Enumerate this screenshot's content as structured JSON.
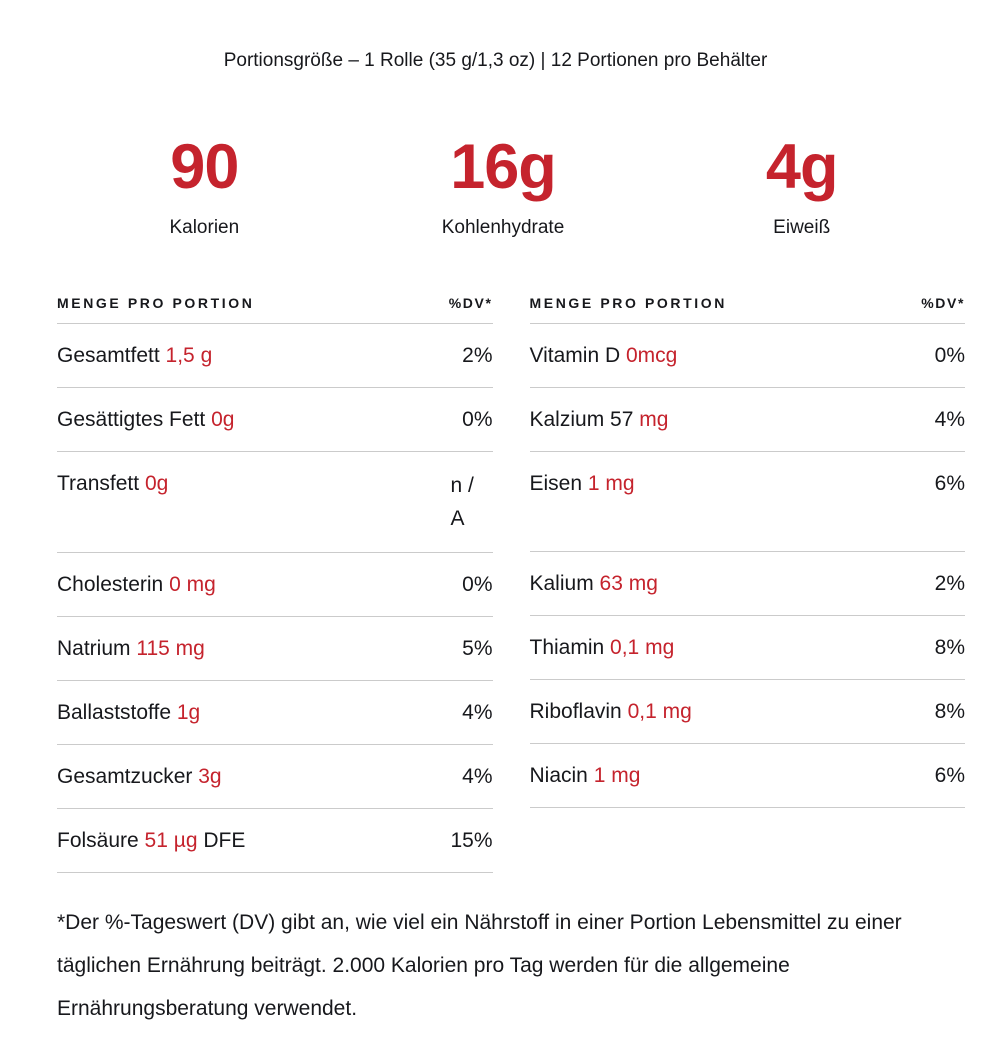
{
  "colors": {
    "accent_red": "#C5232D",
    "text": "#17181C",
    "divider": "#CBCBCB"
  },
  "serving_line": "Portionsgröße – 1 Rolle (35 g/1,3 oz) | 12 Portionen pro Behälter",
  "stats": [
    {
      "value": "90",
      "label": "Kalorien"
    },
    {
      "value": "16g",
      "label": "Kohlenhydrate"
    },
    {
      "value": "4g",
      "label": "Eiweiß"
    }
  ],
  "table": {
    "left": {
      "header": "MENGE PRO PORTION",
      "dv_header": "%DV*",
      "rows": [
        {
          "name": "Gesamtfett",
          "value": "1,5 g",
          "suffix": "",
          "dv": "2%"
        },
        {
          "name": "Gesättigtes Fett",
          "value": "0g",
          "suffix": "",
          "dv": "0%"
        },
        {
          "name": "Transfett",
          "value": "0g",
          "suffix": "",
          "dv": "n / A"
        },
        {
          "name": "Cholesterin",
          "value": "0 mg",
          "suffix": "",
          "dv": "0%"
        },
        {
          "name": "Natrium",
          "value": "115 mg",
          "suffix": "",
          "dv": "5%"
        },
        {
          "name": "Ballaststoffe",
          "value": "1g",
          "suffix": "",
          "dv": "4%"
        },
        {
          "name": "Gesamtzucker",
          "value": "3g",
          "suffix": "",
          "dv": "4%"
        },
        {
          "name": "Folsäure",
          "value": "51 µg",
          "suffix": "DFE",
          "dv": "15%"
        }
      ]
    },
    "right": {
      "header": "MENGE PRO PORTION",
      "dv_header": "%DV*",
      "rows": [
        {
          "name": "Vitamin D",
          "value": "0mcg",
          "suffix": "",
          "dv": "0%"
        },
        {
          "name": "Kalzium 57",
          "value": "mg",
          "suffix": "",
          "dv": "4%"
        },
        {
          "name": "Eisen",
          "value": "1 mg",
          "suffix": "",
          "dv": "6%"
        },
        {
          "name": "Kalium",
          "value": "63 mg",
          "suffix": "",
          "dv": "2%"
        },
        {
          "name": "Thiamin",
          "value": "0,1 mg",
          "suffix": "",
          "dv": "8%"
        },
        {
          "name": "Riboflavin",
          "value": "0,1 mg",
          "suffix": "",
          "dv": "8%"
        },
        {
          "name": "Niacin",
          "value": "1 mg",
          "suffix": "",
          "dv": "6%"
        }
      ]
    }
  },
  "footnote": "*Der %-Tageswert (DV) gibt an, wie viel ein Nährstoff in einer Portion Lebensmittel zu einer täglichen Ernährung beiträgt. 2.000 Kalorien pro Tag werden für die allgemeine Ernährungsberatung verwendet."
}
